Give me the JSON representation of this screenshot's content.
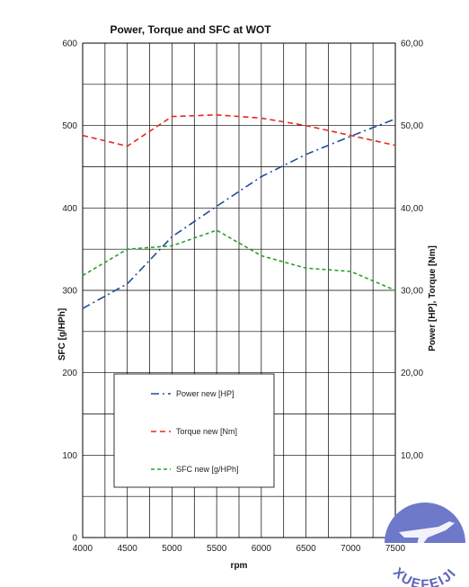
{
  "chart_data": {
    "type": "line",
    "title": "Power, Torque and SFC at WOT",
    "xlabel": "rpm",
    "ylabel_left": "SFC [g/HPh]",
    "ylabel_right": "Power [HP], Torque [Nm]",
    "xlim": [
      4000,
      7500
    ],
    "ylim_left": [
      0,
      600
    ],
    "ylim_right": [
      0,
      60
    ],
    "x_ticks": [
      "4000",
      "4500",
      "5000",
      "5500",
      "6000",
      "6500",
      "7000",
      "7500"
    ],
    "y_left_ticks": [
      "0",
      "100",
      "200",
      "300",
      "400",
      "500",
      "600"
    ],
    "y_right_ticks": [
      "0,00",
      "10,00",
      "20,00",
      "30,00",
      "40,00",
      "50,00",
      "60,00"
    ],
    "grid": true,
    "legend_position": "bottom-left",
    "series": [
      {
        "name": "Power new [HP]",
        "axis": "right",
        "color": "#1f4e9c",
        "dash": "dash-dot",
        "x": [
          4000,
          4500,
          5000,
          5500,
          6000,
          6500,
          7000,
          7500
        ],
        "y": [
          27.8,
          30.8,
          36.5,
          40.2,
          43.8,
          46.5,
          48.7,
          50.8
        ]
      },
      {
        "name": "Torque new [Nm]",
        "axis": "right",
        "color": "#e8281e",
        "dash": "dash",
        "x": [
          4000,
          4500,
          5000,
          5500,
          6000,
          6500,
          7000,
          7500
        ],
        "y": [
          48.8,
          47.5,
          51.1,
          51.3,
          50.9,
          50.0,
          48.8,
          47.6
        ]
      },
      {
        "name": "SFC new [g/HPh]",
        "axis": "left",
        "color": "#2ca02c",
        "dash": "dash-fine",
        "x": [
          4000,
          4500,
          5000,
          5500,
          6000,
          6500,
          7000,
          7500
        ],
        "y": [
          318,
          350,
          354,
          373,
          342,
          327,
          323,
          300
        ]
      }
    ]
  },
  "watermark": {
    "text": "XUEFEIJI",
    "circle_color": "#6e79c9",
    "text_color": "#5a63b8"
  }
}
